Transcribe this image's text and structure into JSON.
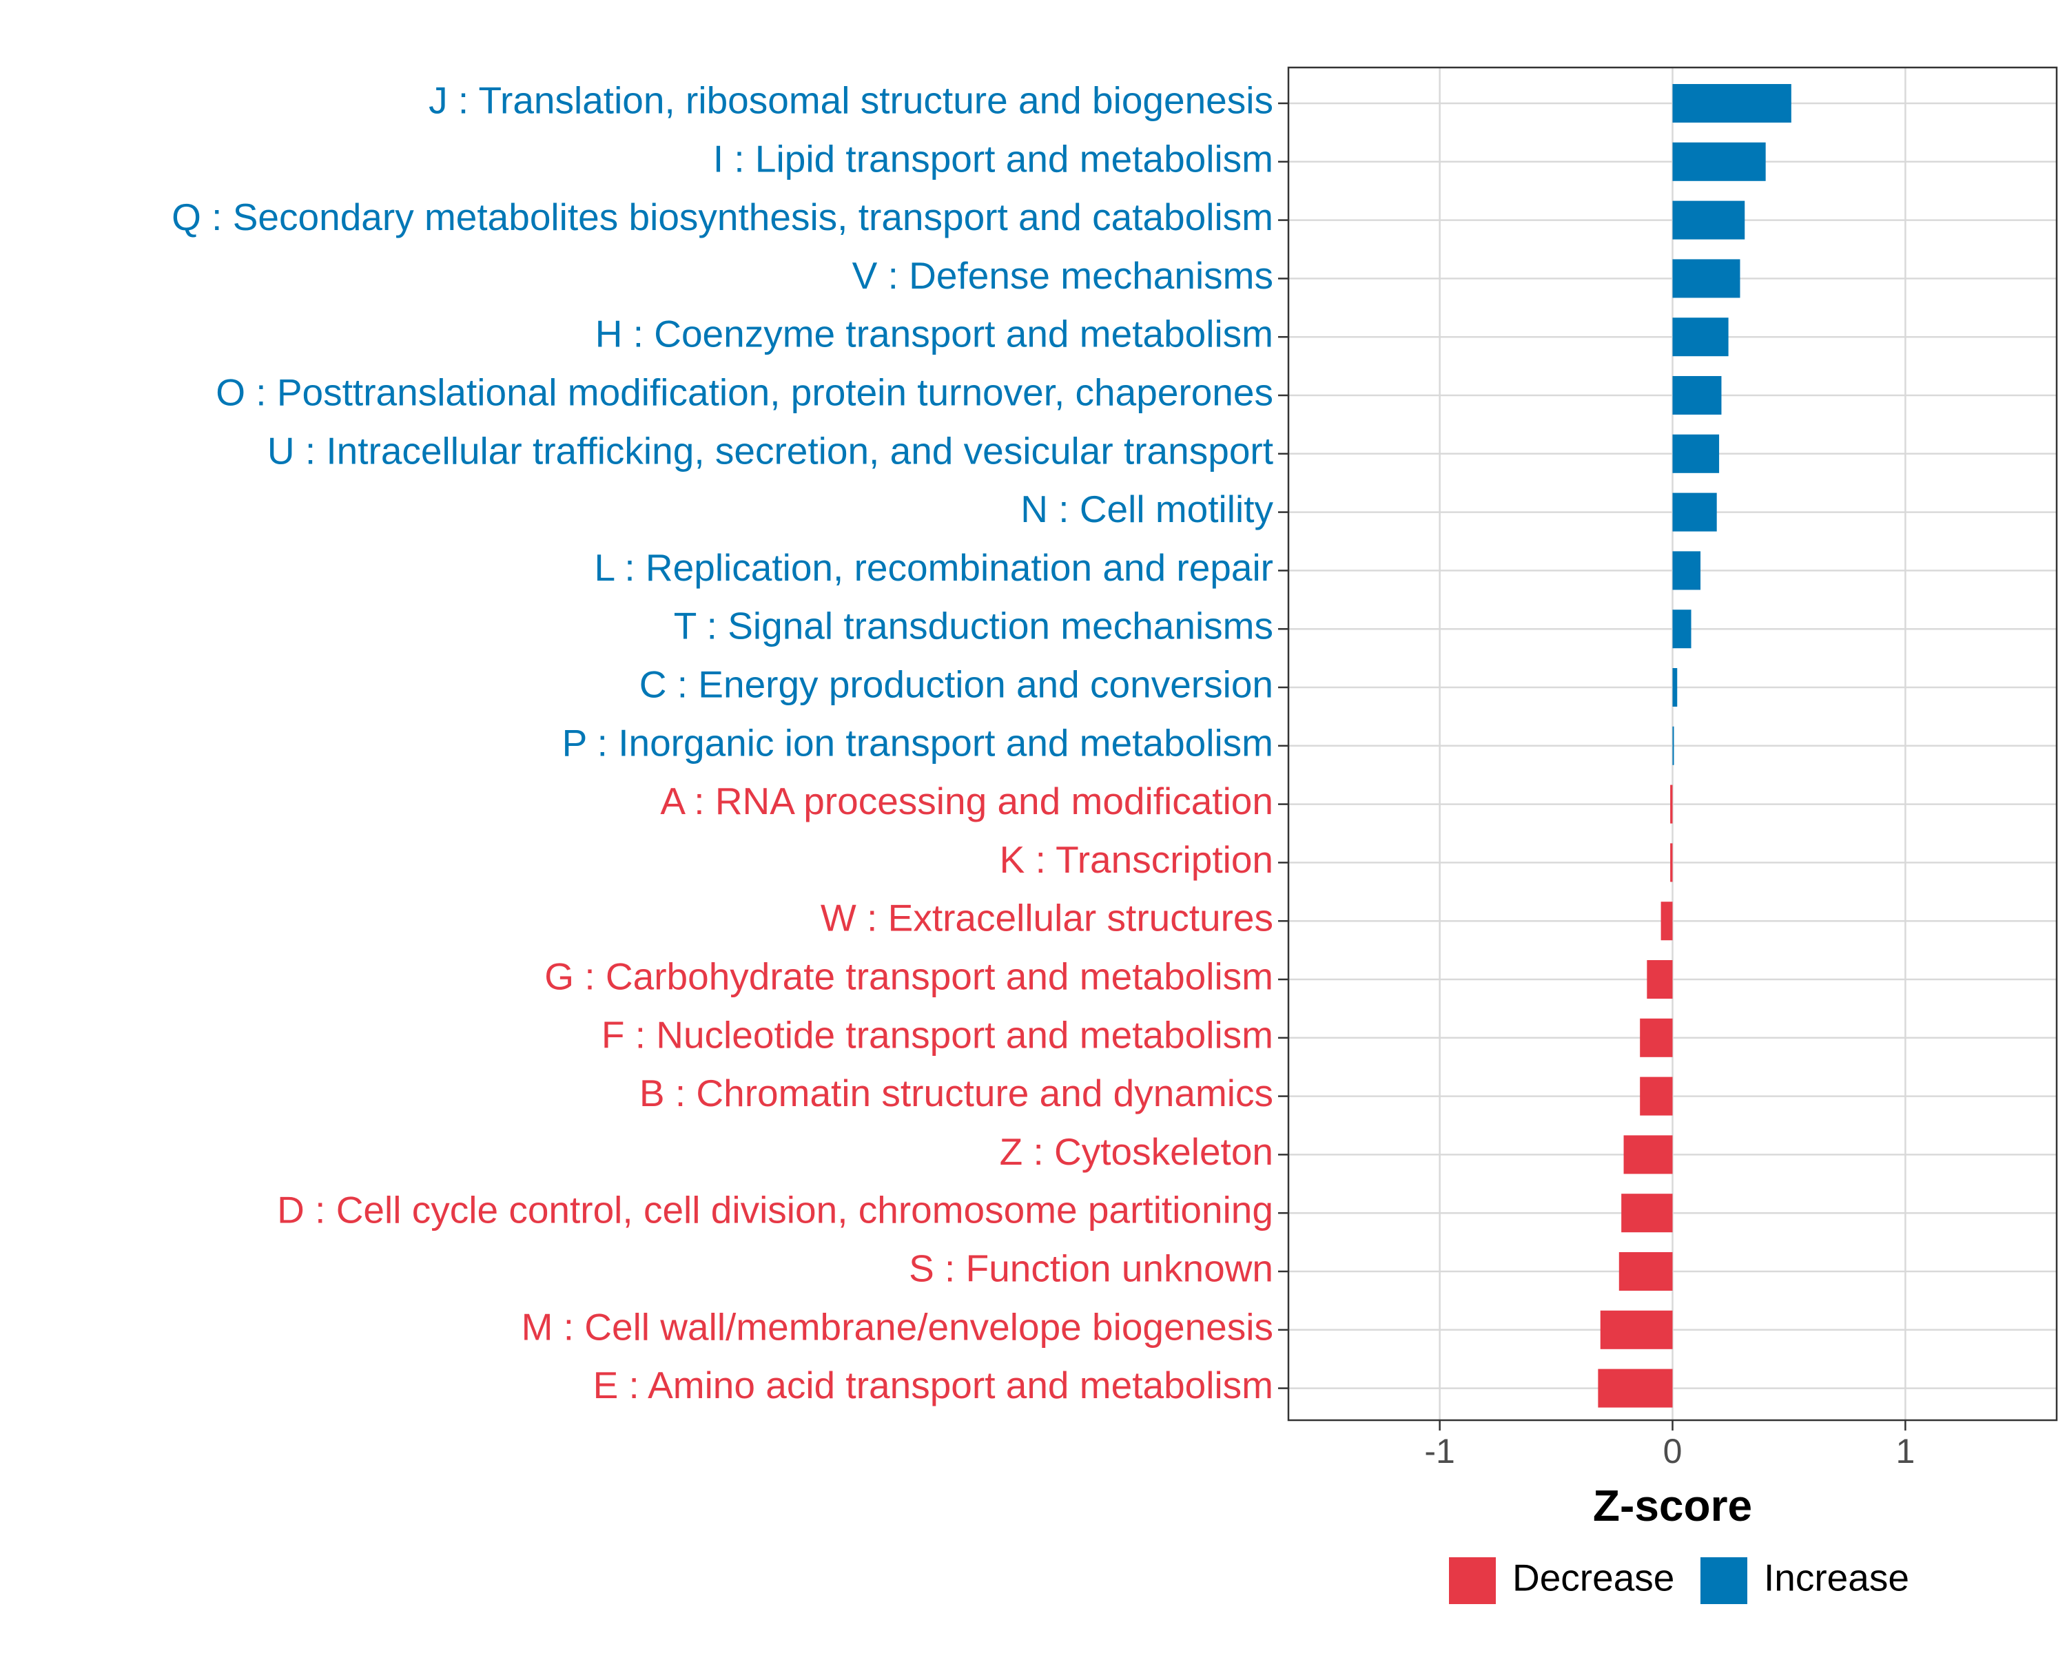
{
  "chart_data": {
    "type": "bar",
    "orientation": "horizontal",
    "title": "",
    "xlabel": "Z-score",
    "ylabel": "",
    "xlim": [
      -1.65,
      1.65
    ],
    "xticks": [
      -1,
      0,
      1
    ],
    "xtick_labels": [
      "-1",
      "0",
      "1"
    ],
    "grid": true,
    "categories": [
      "J : Translation, ribosomal structure and biogenesis",
      "I : Lipid transport and metabolism",
      "Q : Secondary metabolites biosynthesis, transport and catabolism",
      "V : Defense mechanisms",
      "H : Coenzyme transport and metabolism",
      "O : Posttranslational modification, protein turnover, chaperones",
      "U : Intracellular trafficking, secretion, and vesicular transport",
      "N : Cell motility",
      "L : Replication, recombination and repair",
      "T : Signal transduction mechanisms",
      "C : Energy production and conversion",
      "P : Inorganic ion transport and metabolism",
      "A : RNA processing and modification",
      "K : Transcription",
      "W : Extracellular structures",
      "G : Carbohydrate transport and metabolism",
      "F : Nucleotide transport and metabolism",
      "B : Chromatin structure and dynamics",
      "Z : Cytoskeleton",
      "D : Cell cycle control, cell division, chromosome partitioning",
      "S : Function unknown",
      "M : Cell wall/membrane/envelope biogenesis",
      "E : Amino acid transport and metabolism"
    ],
    "values": [
      0.51,
      0.4,
      0.31,
      0.29,
      0.24,
      0.21,
      0.2,
      0.19,
      0.12,
      0.08,
      0.02,
      0.005,
      -0.01,
      -0.01,
      -0.05,
      -0.11,
      -0.14,
      -0.14,
      -0.21,
      -0.22,
      -0.23,
      -0.31,
      -0.32
    ],
    "groups": [
      "Increase",
      "Increase",
      "Increase",
      "Increase",
      "Increase",
      "Increase",
      "Increase",
      "Increase",
      "Increase",
      "Increase",
      "Increase",
      "Increase",
      "Decrease",
      "Decrease",
      "Decrease",
      "Decrease",
      "Decrease",
      "Decrease",
      "Decrease",
      "Decrease",
      "Decrease",
      "Decrease",
      "Decrease"
    ],
    "legend": {
      "position": "bottom",
      "entries": [
        {
          "label": "Decrease",
          "color": "#E63946"
        },
        {
          "label": "Increase",
          "color": "#0077B6"
        }
      ]
    },
    "colors": {
      "Increase": "#0077B6",
      "Decrease": "#E63946"
    }
  }
}
